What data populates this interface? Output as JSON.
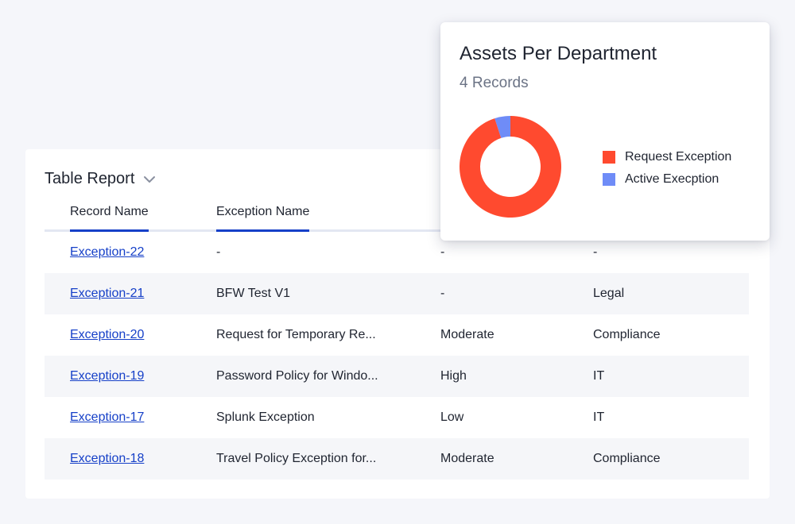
{
  "table": {
    "title": "Table Report",
    "columns": [
      "Record Name",
      "Exception Name"
    ],
    "rows": [
      {
        "record": "Exception-22",
        "exception": "-",
        "col3": "-",
        "col4": "-"
      },
      {
        "record": "Exception-21",
        "exception": "BFW Test V1",
        "col3": "-",
        "col4": "Legal"
      },
      {
        "record": "Exception-20",
        "exception": "Request for Temporary Re...",
        "col3": "Moderate",
        "col4": "Compliance"
      },
      {
        "record": "Exception-19",
        "exception": "Password Policy for Windo...",
        "col3": "High",
        "col4": "IT"
      },
      {
        "record": "Exception-17",
        "exception": "Splunk Exception",
        "col3": "Low",
        "col4": "IT"
      },
      {
        "record": "Exception-18",
        "exception": "Travel Policy Exception for...",
        "col3": "Moderate",
        "col4": "Compliance"
      }
    ]
  },
  "chart": {
    "title": "Assets Per Department",
    "subtitle": "4 Records"
  },
  "chart_data": {
    "type": "pie",
    "donut": true,
    "categories": [
      "Request Exception",
      "Active Execption"
    ],
    "values": [
      95,
      5
    ],
    "colors": [
      "#ff4a2f",
      "#6f8cf7"
    ],
    "legend": "right"
  },
  "colors": {
    "accent": "#1640c8",
    "header_rule": "#e3e7f2",
    "row_alt": "#f5f6f9"
  }
}
